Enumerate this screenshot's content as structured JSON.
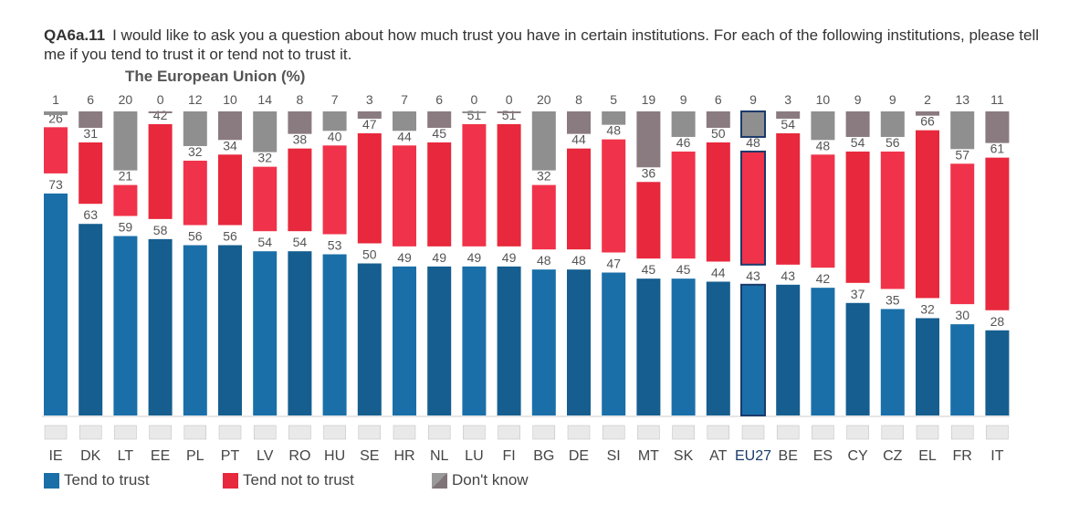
{
  "question": {
    "code": "QA6a.11",
    "text": "I would like to ask you a question about how much trust you have in certain institutions. For each of the following institutions, please tell me if you tend to trust it or tend not to trust it."
  },
  "subtitle": "The European Union  (%)",
  "colors": {
    "trust": "#1a6fa8",
    "trust_dark": "#155e8f",
    "not_trust": "#e8283c",
    "not_trust_light": "#f0334a",
    "dont_know": "#8f8f8f",
    "dont_know_alt": "#8a7b80",
    "highlight_border": "#1b3a6b"
  },
  "legend": [
    {
      "label": "Tend to trust",
      "color": "#1a6fa8"
    },
    {
      "label": "Tend not to trust",
      "color": "#e8283c"
    },
    {
      "label": "Don't know",
      "color": "#8a8a8a"
    }
  ],
  "chart_data": {
    "type": "bar",
    "stacked": true,
    "highlight": "EU27",
    "categories": [
      "IE",
      "DK",
      "LT",
      "EE",
      "PL",
      "PT",
      "LV",
      "RO",
      "HU",
      "SE",
      "HR",
      "NL",
      "LU",
      "FI",
      "BG",
      "DE",
      "SI",
      "MT",
      "SK",
      "AT",
      "EU27",
      "BE",
      "ES",
      "CY",
      "CZ",
      "EL",
      "FR",
      "IT"
    ],
    "series": [
      {
        "name": "Tend to trust",
        "values": [
          73,
          63,
          59,
          58,
          56,
          56,
          54,
          54,
          53,
          50,
          49,
          49,
          49,
          49,
          48,
          48,
          47,
          45,
          45,
          44,
          43,
          43,
          42,
          37,
          35,
          32,
          30,
          28
        ]
      },
      {
        "name": "Tend not to trust",
        "values": [
          26,
          31,
          21,
          42,
          32,
          34,
          32,
          38,
          40,
          47,
          44,
          45,
          51,
          51,
          32,
          44,
          48,
          36,
          46,
          50,
          48,
          54,
          48,
          54,
          56,
          66,
          57,
          61
        ]
      },
      {
        "name": "Don't know",
        "values": [
          1,
          6,
          20,
          0,
          12,
          10,
          14,
          8,
          7,
          3,
          7,
          6,
          0,
          0,
          20,
          8,
          5,
          19,
          9,
          6,
          9,
          3,
          10,
          9,
          9,
          2,
          13,
          11
        ]
      }
    ],
    "ylim": [
      0,
      100
    ]
  }
}
